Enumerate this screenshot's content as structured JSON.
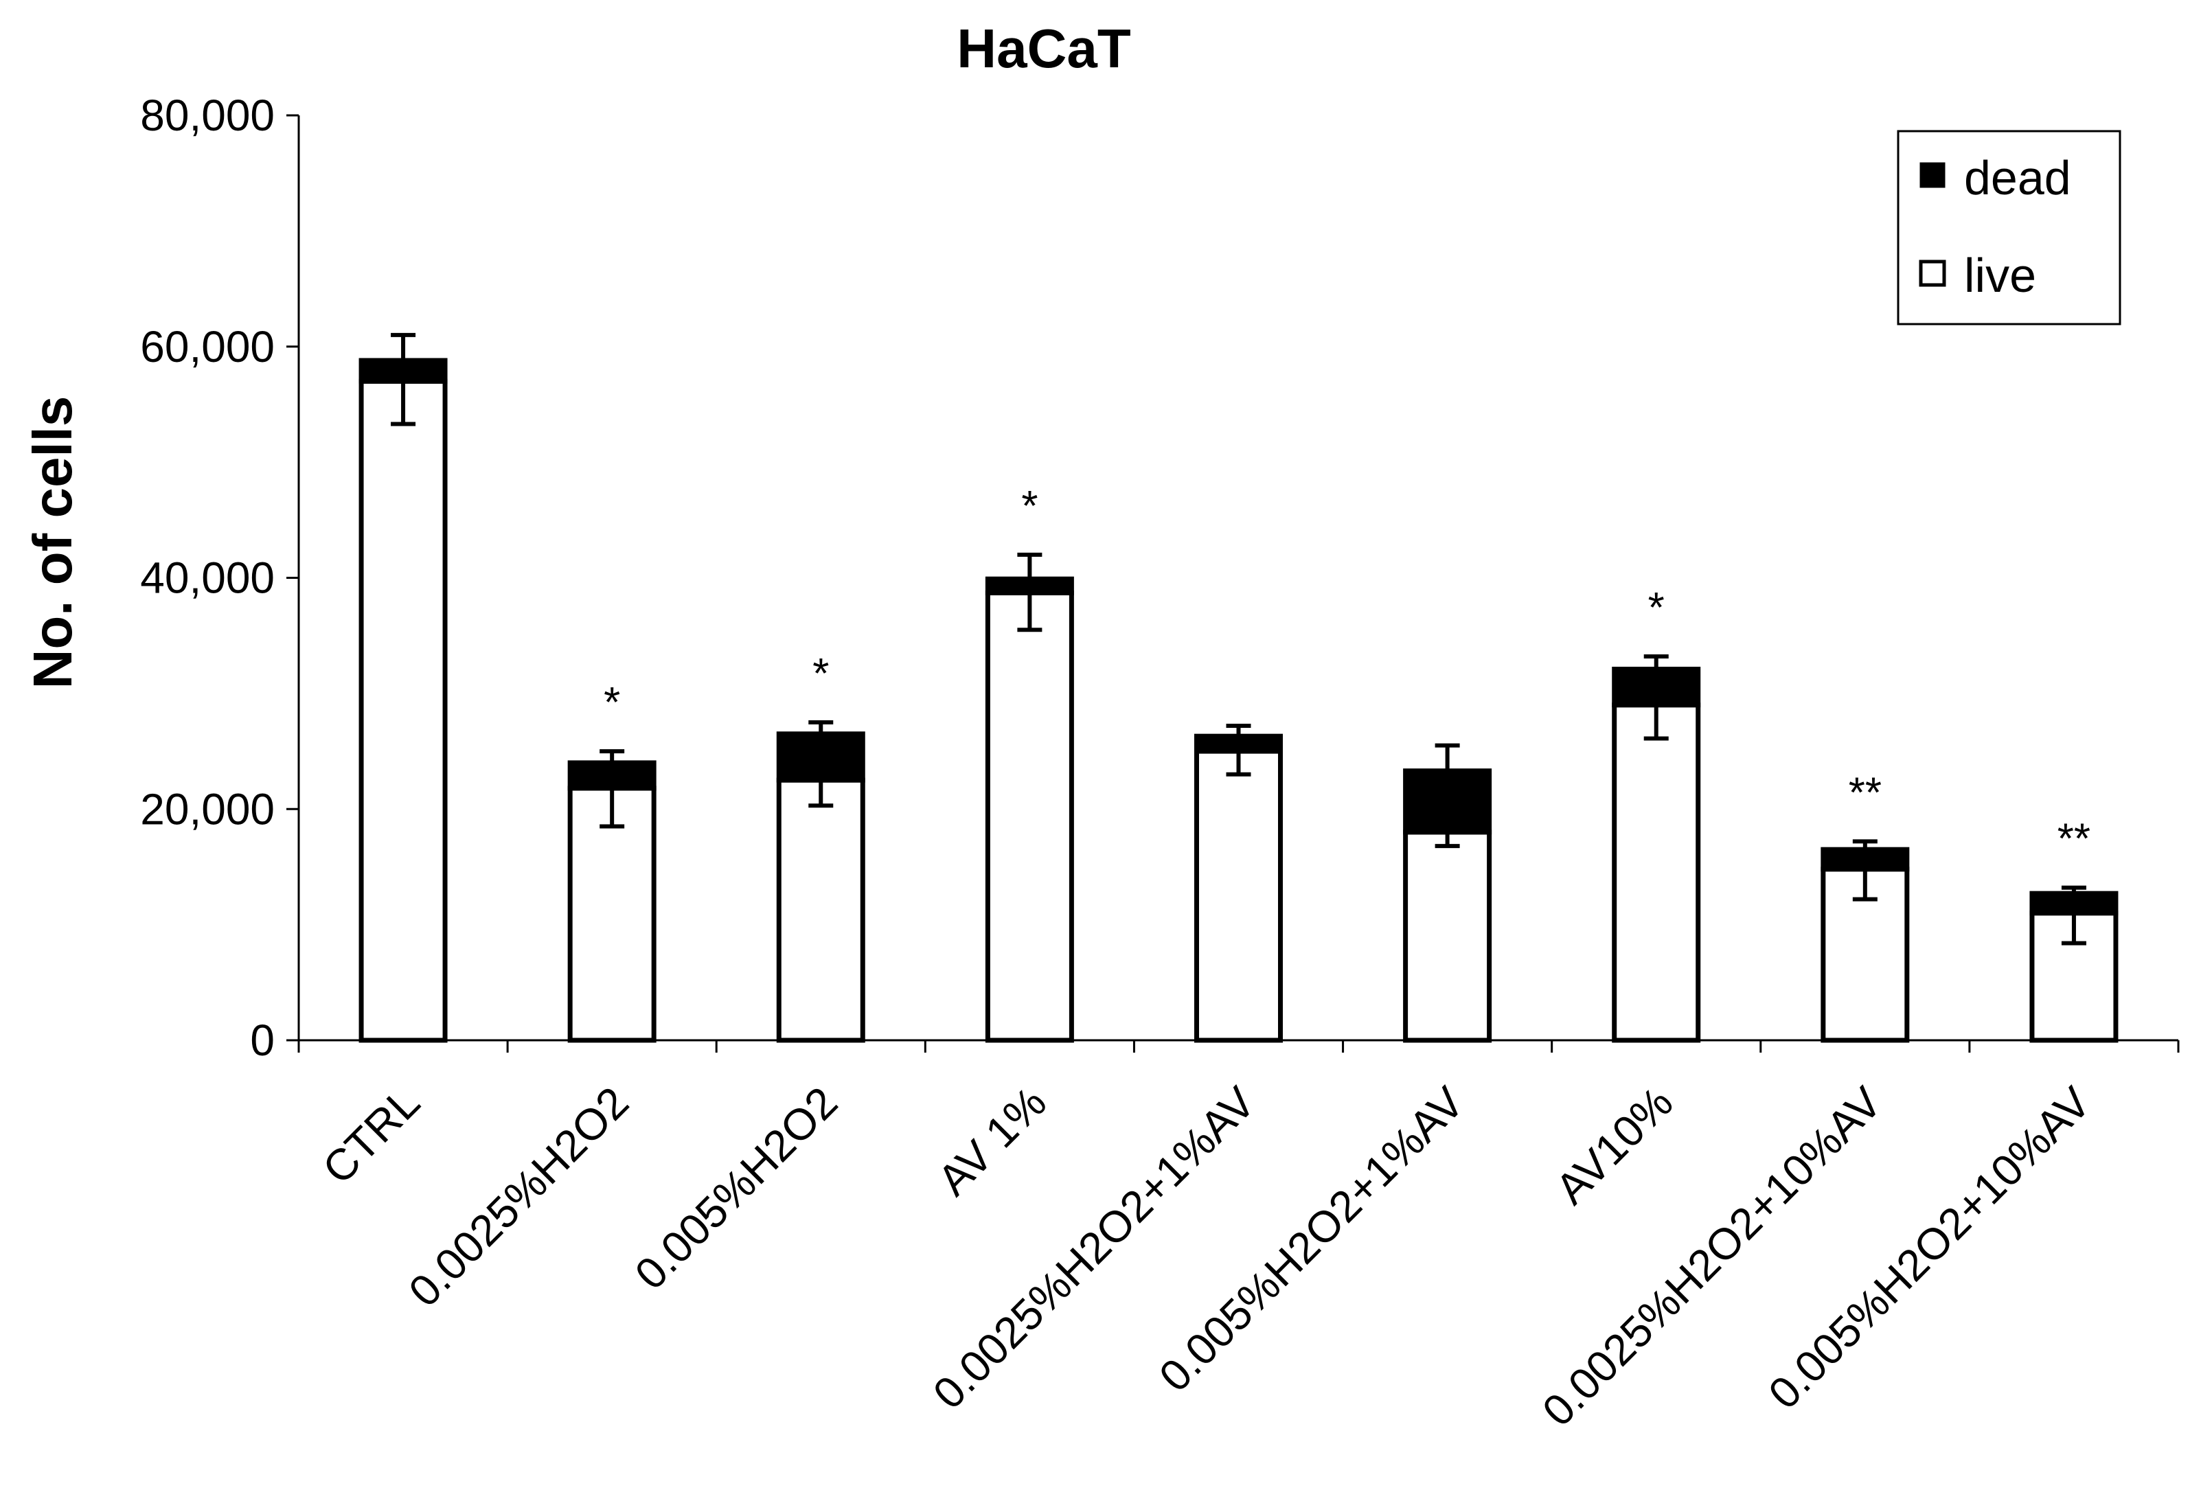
{
  "chart_data": {
    "type": "bar",
    "stacked": true,
    "title": "HaCaT",
    "xlabel": "",
    "ylabel": "No. of cells",
    "ylim": [
      0,
      80000
    ],
    "yticks": [
      0,
      20000,
      40000,
      60000,
      80000
    ],
    "ytick_labels": [
      "0",
      "20,000",
      "40,000",
      "60,000",
      "80,000"
    ],
    "categories": [
      "CTRL",
      "0.0025%H2O2",
      "0.005%H2O2",
      "AV 1%",
      "0.0025%H2O2+1%AV",
      "0.005%H2O2+1%AV",
      "AV10%",
      "0.0025%H2O2+10%AV",
      "0.005%H2O2+10%AV"
    ],
    "series": [
      {
        "name": "live",
        "color": "#ffffff",
        "values": [
          57000,
          21800,
          22500,
          38700,
          25000,
          18000,
          29000,
          14800,
          11000
        ]
      },
      {
        "name": "dead",
        "color": "#000000",
        "values": [
          1800,
          2200,
          4000,
          1200,
          1300,
          5300,
          3100,
          1700,
          1700
        ]
      }
    ],
    "error_bars": {
      "upper": [
        61000,
        25000,
        27500,
        42000,
        27200,
        25500,
        33200,
        17200,
        13200
      ],
      "lower": [
        53300,
        18500,
        20300,
        35500,
        23000,
        16800,
        26100,
        12200,
        8400
      ]
    },
    "significance": [
      "",
      "*",
      "*",
      "*",
      "",
      "",
      "*",
      "**",
      "**"
    ],
    "legend": {
      "position": "top-right",
      "entries": [
        "dead",
        "live"
      ]
    },
    "grid": false
  }
}
